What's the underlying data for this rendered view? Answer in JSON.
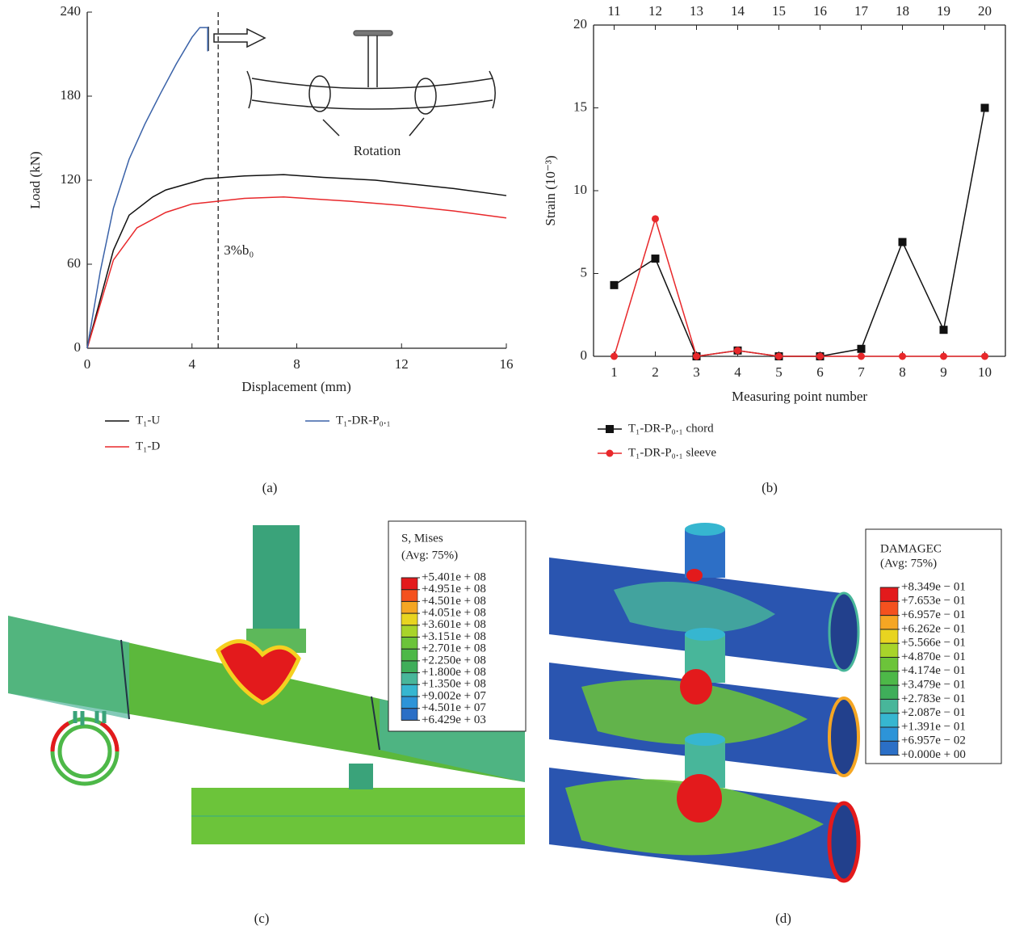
{
  "chart_data": [
    {
      "type": "line",
      "panel_label": "(a)",
      "xlabel": "Displacement (mm)",
      "ylabel": "Load (kN)",
      "xlim": [
        0,
        16
      ],
      "xticks": [
        0,
        4,
        8,
        12,
        16
      ],
      "ylim": [
        0,
        240
      ],
      "yticks": [
        0,
        60,
        120,
        180,
        240
      ],
      "annotations": [
        {
          "text": "3%b₀",
          "x": 5
        }
      ],
      "inset_label": "Rotation",
      "series": [
        {
          "name": "T₁-U",
          "color": "#111111",
          "x": [
            0,
            1,
            1.6,
            2.5,
            3,
            4.5,
            6,
            7.5,
            9,
            11,
            12,
            14,
            16
          ],
          "values": [
            0,
            70,
            95,
            108,
            113,
            121,
            123,
            124,
            122,
            120,
            118,
            114,
            109
          ]
        },
        {
          "name": "T₁-D",
          "color": "#e8282b",
          "x": [
            0,
            1,
            1.9,
            3,
            4,
            5,
            6,
            7.5,
            10,
            12,
            14,
            16
          ],
          "values": [
            0,
            63,
            86,
            97,
            103,
            105,
            107,
            108,
            105,
            102,
            98,
            93
          ]
        },
        {
          "name": "T₁-DR-P₀.₁",
          "color": "#3a62a8",
          "x": [
            0,
            0.5,
            1,
            1.6,
            2.2,
            2.8,
            3.4,
            4.0,
            4.3,
            4.6,
            4.6
          ],
          "values": [
            0,
            55,
            100,
            135,
            160,
            182,
            203,
            222,
            229,
            229,
            212
          ]
        }
      ]
    },
    {
      "type": "line",
      "panel_label": "(b)",
      "xlabel": "Measuring point number",
      "ylabel": "Strain (10⁻³)",
      "xlim": [
        0.5,
        10.5
      ],
      "xticks": [
        1,
        2,
        3,
        4,
        5,
        6,
        7,
        8,
        9,
        10
      ],
      "x2ticks": [
        {
          "value": 1,
          "label": "11"
        },
        {
          "value": 2,
          "label": "12"
        },
        {
          "value": 3,
          "label": "13"
        },
        {
          "value": 4,
          "label": "14"
        },
        {
          "value": 5,
          "label": "15"
        },
        {
          "value": 6,
          "label": "16"
        },
        {
          "value": 7,
          "label": "17"
        },
        {
          "value": 8,
          "label": "18"
        },
        {
          "value": 9,
          "label": "19"
        },
        {
          "value": 10,
          "label": "20"
        }
      ],
      "ylim": [
        0,
        20
      ],
      "yticks": [
        0,
        5,
        10,
        15,
        20
      ],
      "x": [
        1,
        2,
        3,
        4,
        5,
        6,
        7,
        8,
        9,
        10
      ],
      "series": [
        {
          "name": "T₁-DR-P₀.₁ chord",
          "color": "#111111",
          "marker": "square",
          "values": [
            4.3,
            5.9,
            0,
            0.35,
            0,
            0,
            0.45,
            6.9,
            1.6,
            15
          ]
        },
        {
          "name": "T₁-DR-P₀.₁ sleeve",
          "color": "#e8282b",
          "marker": "circle",
          "values": [
            0,
            8.3,
            0,
            0.35,
            0,
            0,
            0,
            0,
            0,
            0
          ]
        }
      ]
    }
  ],
  "panels": [
    {
      "label": "(c)",
      "legend": {
        "title": "S, Mises",
        "subtitle": "(Avg: 75%)",
        "entries": [
          {
            "label": "+5.401e + 08",
            "color": "#e31a1c"
          },
          {
            "label": "+4.951e + 08",
            "color": "#f4511e"
          },
          {
            "label": "+4.501e + 08",
            "color": "#f5a623"
          },
          {
            "label": "+4.051e + 08",
            "color": "#e8d420"
          },
          {
            "label": "+3.601e + 08",
            "color": "#a8d42a"
          },
          {
            "label": "+3.151e + 08",
            "color": "#6cc43a"
          },
          {
            "label": "+2.701e + 08",
            "color": "#4db848"
          },
          {
            "label": "+2.250e + 08",
            "color": "#3fae5a"
          },
          {
            "label": "+1.800e + 08",
            "color": "#48b69a"
          },
          {
            "label": "+1.350e + 08",
            "color": "#36b6d0"
          },
          {
            "label": "+9.002e + 07",
            "color": "#2d94d8"
          },
          {
            "label": "+4.501e + 07",
            "color": "#2b6fc6"
          },
          {
            "label": "+6.429e + 03",
            "color": "#2a4fa8"
          }
        ]
      }
    },
    {
      "label": "(d)",
      "legend": {
        "title": "DAMAGEC",
        "subtitle": "(Avg: 75%)",
        "entries": [
          {
            "label": "+8.349e − 01",
            "color": "#e31a1c"
          },
          {
            "label": "+7.653e − 01",
            "color": "#f4511e"
          },
          {
            "label": "+6.957e − 01",
            "color": "#f5a623"
          },
          {
            "label": "+6.262e − 01",
            "color": "#e8d420"
          },
          {
            "label": "+5.566e − 01",
            "color": "#a8d42a"
          },
          {
            "label": "+4.870e − 01",
            "color": "#6cc43a"
          },
          {
            "label": "+4.174e − 01",
            "color": "#4db848"
          },
          {
            "label": "+3.479e − 01",
            "color": "#3fae5a"
          },
          {
            "label": "+2.783e − 01",
            "color": "#48b69a"
          },
          {
            "label": "+2.087e − 01",
            "color": "#36b6d0"
          },
          {
            "label": "+1.391e − 01",
            "color": "#2d94d8"
          },
          {
            "label": "+6.957e − 02",
            "color": "#2b6fc6"
          },
          {
            "label": "+0.000e + 00",
            "color": "#2a4fa8"
          }
        ]
      }
    }
  ]
}
